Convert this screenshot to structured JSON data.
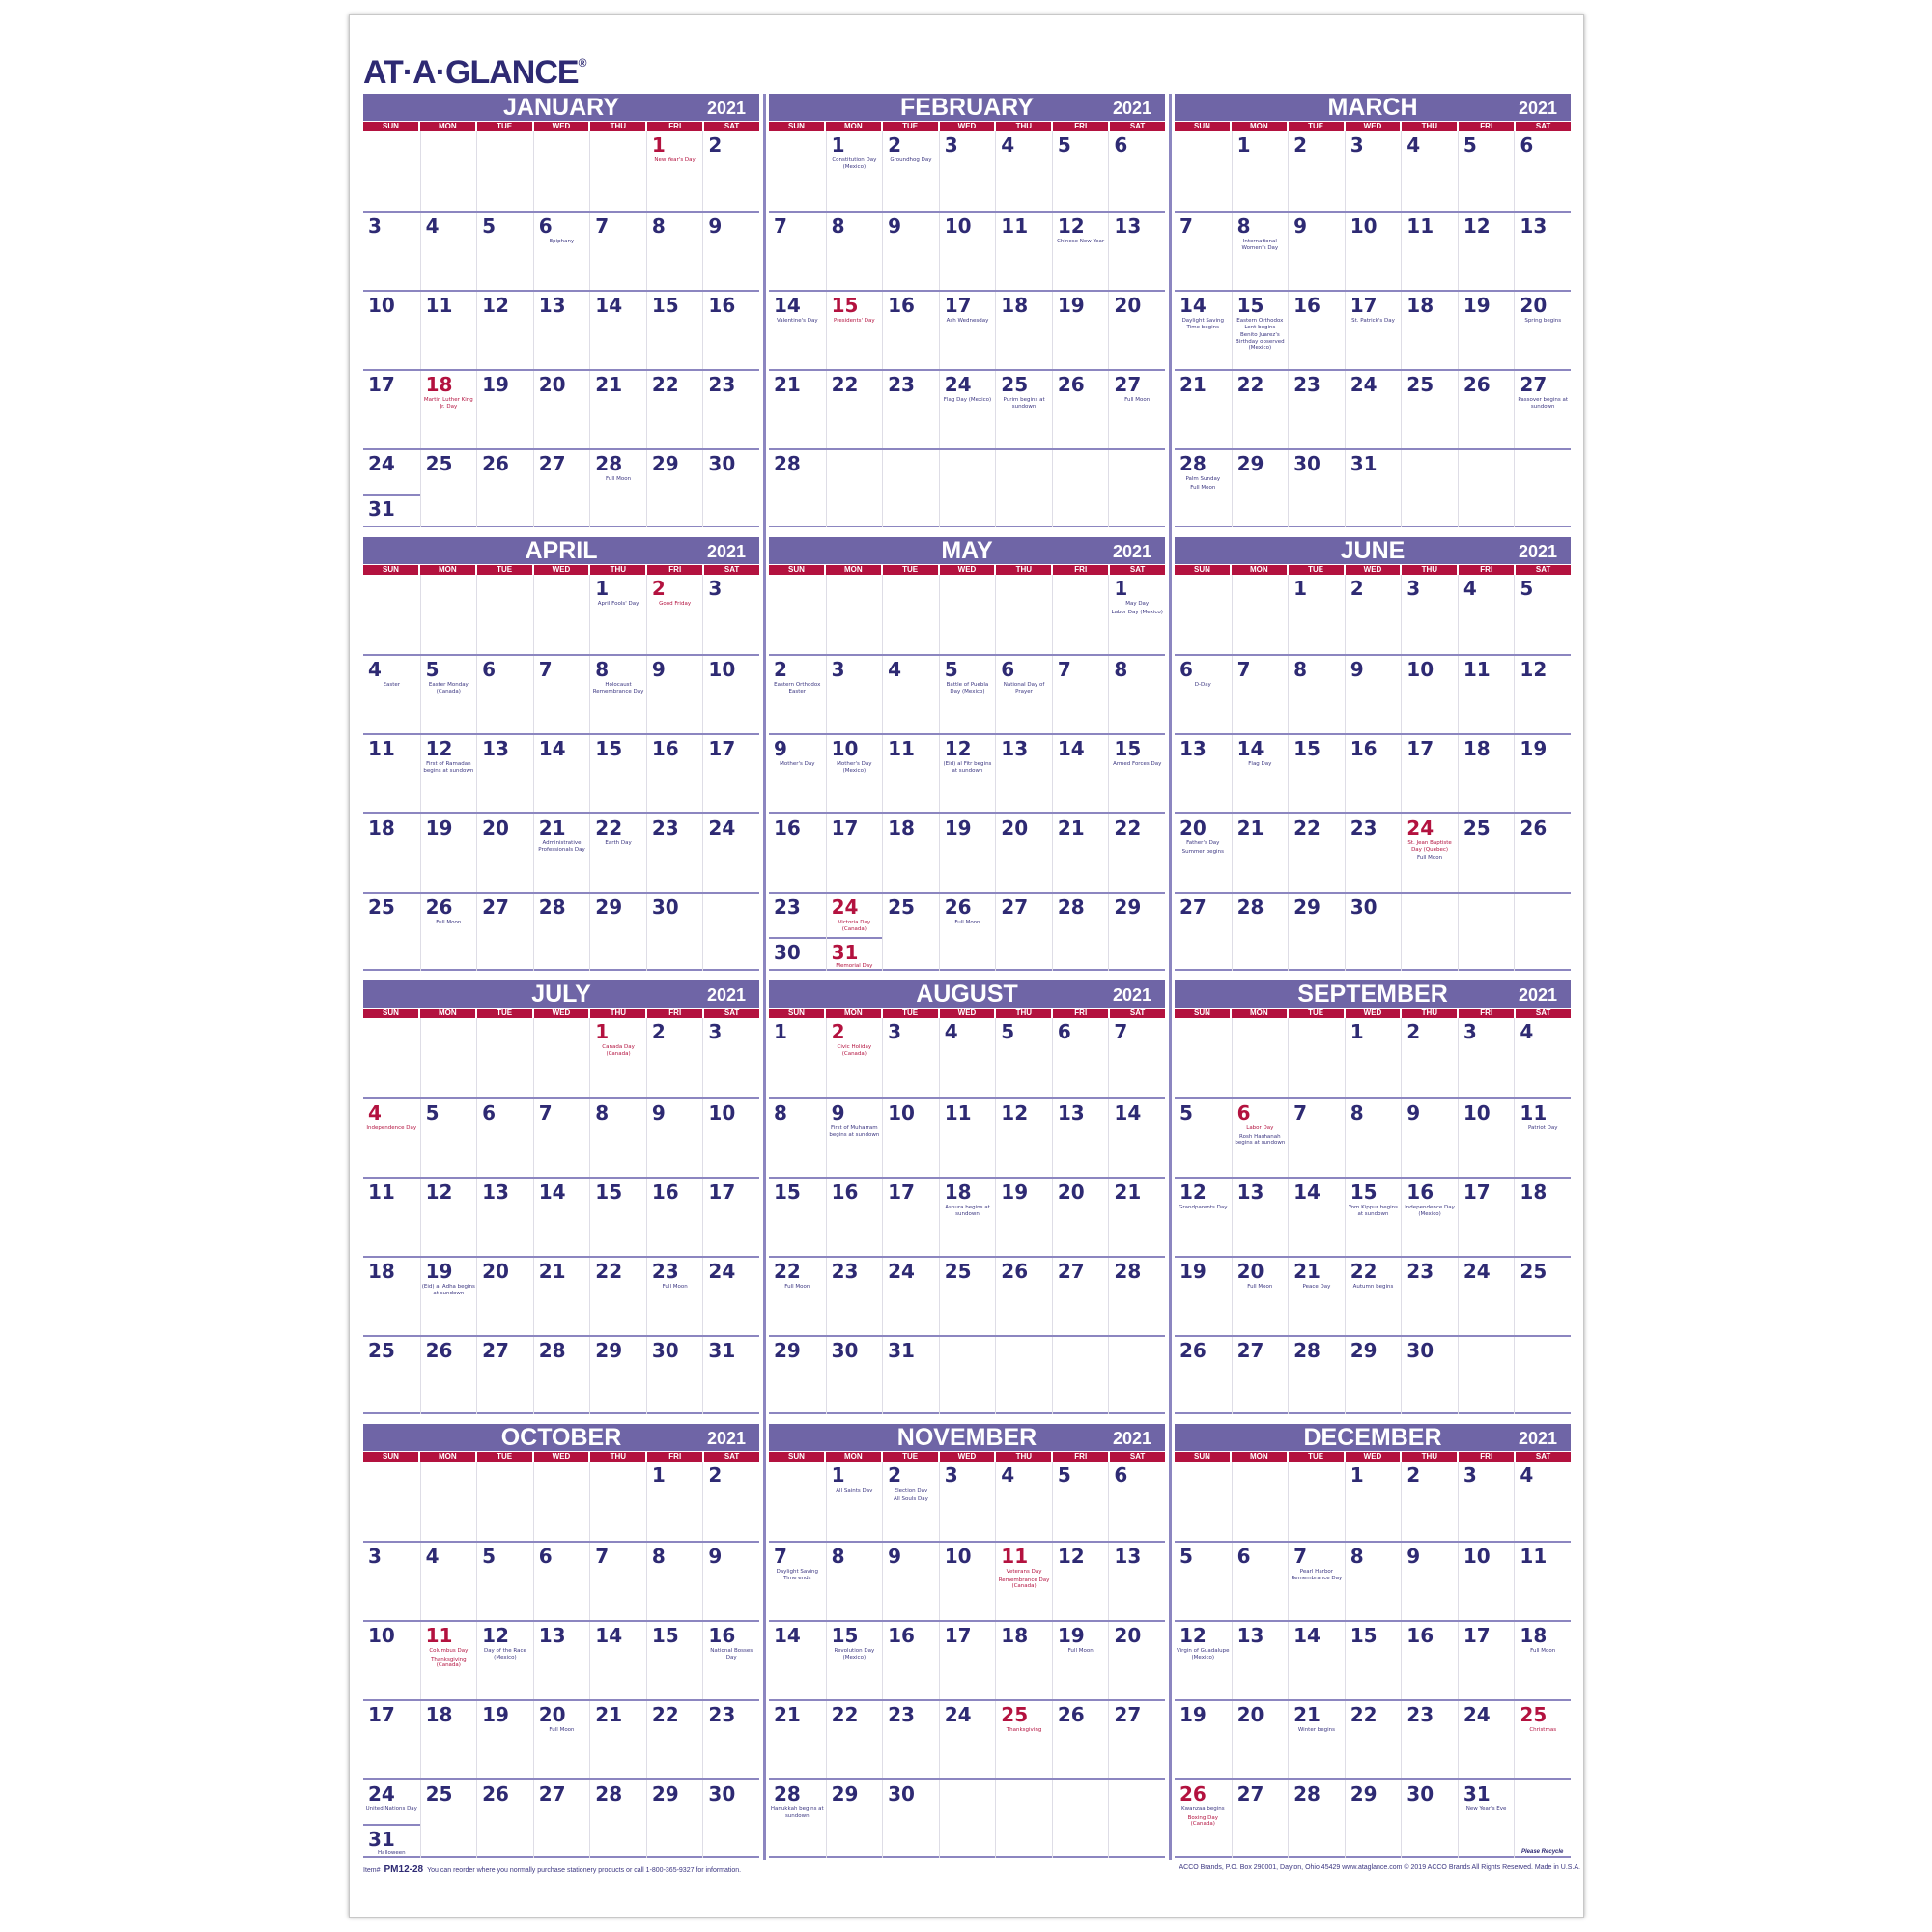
{
  "brand": {
    "logo": "AT·A·GLANCE",
    "registered": "®"
  },
  "colors": {
    "navy": "#2e2a73",
    "red": "#b3123f",
    "header_purple": "#6f65a6",
    "rule_purple": "#8c86c0"
  },
  "weekdays": [
    "SUN",
    "MON",
    "TUE",
    "WED",
    "THU",
    "FRI",
    "SAT"
  ],
  "months": [
    {
      "name": "JANUARY",
      "year": "2021",
      "weeks": [
        [
          null,
          null,
          null,
          null,
          null,
          1,
          2
        ],
        [
          3,
          4,
          5,
          6,
          7,
          8,
          9
        ],
        [
          10,
          11,
          12,
          13,
          14,
          15,
          16
        ],
        [
          17,
          18,
          19,
          20,
          21,
          22,
          23
        ],
        [
          24,
          25,
          26,
          27,
          28,
          29,
          30
        ],
        [
          31
        ]
      ],
      "red": [
        1,
        18
      ],
      "events": {
        "1": [
          {
            "t": "New Year's Day",
            "red": true
          }
        ],
        "6": [
          {
            "t": "Epiphany"
          }
        ],
        "18": [
          {
            "t": "Martin Luther King Jr. Day",
            "red": true
          }
        ],
        "28": [
          {
            "t": "Full Moon"
          }
        ]
      }
    },
    {
      "name": "FEBRUARY",
      "year": "2021",
      "weeks": [
        [
          null,
          1,
          2,
          3,
          4,
          5,
          6
        ],
        [
          7,
          8,
          9,
          10,
          11,
          12,
          13
        ],
        [
          14,
          15,
          16,
          17,
          18,
          19,
          20
        ],
        [
          21,
          22,
          23,
          24,
          25,
          26,
          27
        ],
        [
          28
        ]
      ],
      "red": [
        15
      ],
      "events": {
        "1": [
          {
            "t": "Constitution Day (Mexico)"
          }
        ],
        "2": [
          {
            "t": "Groundhog Day"
          }
        ],
        "12": [
          {
            "t": "Chinese New Year"
          }
        ],
        "14": [
          {
            "t": "Valentine's Day"
          }
        ],
        "15": [
          {
            "t": "Presidents' Day",
            "red": true
          }
        ],
        "17": [
          {
            "t": "Ash Wednesday"
          }
        ],
        "24": [
          {
            "t": "Flag Day (Mexico)"
          }
        ],
        "25": [
          {
            "t": "Purim begins at sundown"
          }
        ],
        "27": [
          {
            "t": "Full Moon"
          }
        ]
      }
    },
    {
      "name": "MARCH",
      "year": "2021",
      "weeks": [
        [
          null,
          1,
          2,
          3,
          4,
          5,
          6
        ],
        [
          7,
          8,
          9,
          10,
          11,
          12,
          13
        ],
        [
          14,
          15,
          16,
          17,
          18,
          19,
          20
        ],
        [
          21,
          22,
          23,
          24,
          25,
          26,
          27
        ],
        [
          28,
          29,
          30,
          31
        ]
      ],
      "red": [],
      "events": {
        "8": [
          {
            "t": "International Women's Day"
          }
        ],
        "14": [
          {
            "t": "Daylight Saving Time begins"
          }
        ],
        "15": [
          {
            "t": "Eastern Orthodox Lent begins"
          },
          {
            "t": "Benito Juarez's Birthday observed (Mexico)"
          }
        ],
        "17": [
          {
            "t": "St. Patrick's Day"
          }
        ],
        "20": [
          {
            "t": "Spring begins"
          }
        ],
        "27": [
          {
            "t": "Passover begins at sundown"
          }
        ],
        "28": [
          {
            "t": "Palm Sunday"
          },
          {
            "t": "Full Moon"
          }
        ]
      }
    },
    {
      "name": "APRIL",
      "year": "2021",
      "weeks": [
        [
          null,
          null,
          null,
          null,
          1,
          2,
          3
        ],
        [
          4,
          5,
          6,
          7,
          8,
          9,
          10
        ],
        [
          11,
          12,
          13,
          14,
          15,
          16,
          17
        ],
        [
          18,
          19,
          20,
          21,
          22,
          23,
          24
        ],
        [
          25,
          26,
          27,
          28,
          29,
          30
        ]
      ],
      "red": [
        2
      ],
      "events": {
        "1": [
          {
            "t": "April Fools' Day"
          }
        ],
        "2": [
          {
            "t": "Good Friday",
            "red": true
          }
        ],
        "4": [
          {
            "t": "Easter"
          }
        ],
        "5": [
          {
            "t": "Easter Monday (Canada)"
          }
        ],
        "8": [
          {
            "t": "Holocaust Remembrance Day"
          }
        ],
        "12": [
          {
            "t": "First of Ramadan begins at sundown"
          }
        ],
        "21": [
          {
            "t": "Administrative Professionals Day"
          }
        ],
        "22": [
          {
            "t": "Earth Day"
          }
        ],
        "26": [
          {
            "t": "Full Moon"
          }
        ]
      }
    },
    {
      "name": "MAY",
      "year": "2021",
      "weeks": [
        [
          null,
          null,
          null,
          null,
          null,
          null,
          1
        ],
        [
          2,
          3,
          4,
          5,
          6,
          7,
          8
        ],
        [
          9,
          10,
          11,
          12,
          13,
          14,
          15
        ],
        [
          16,
          17,
          18,
          19,
          20,
          21,
          22
        ],
        [
          23,
          24,
          25,
          26,
          27,
          28,
          29
        ],
        [
          30,
          31
        ]
      ],
      "red": [
        24,
        31
      ],
      "events": {
        "1": [
          {
            "t": "May Day"
          },
          {
            "t": "Labor Day (Mexico)"
          }
        ],
        "2": [
          {
            "t": "Eastern Orthodox Easter"
          }
        ],
        "5": [
          {
            "t": "Battle of Puebla Day (Mexico)"
          }
        ],
        "6": [
          {
            "t": "National Day of Prayer"
          }
        ],
        "9": [
          {
            "t": "Mother's Day"
          }
        ],
        "10": [
          {
            "t": "Mother's Day (Mexico)"
          }
        ],
        "12": [
          {
            "t": "(Eid) al Fitr begins at sundown"
          }
        ],
        "15": [
          {
            "t": "Armed Forces Day"
          }
        ],
        "24": [
          {
            "t": "Victoria Day (Canada)",
            "red": true
          }
        ],
        "26": [
          {
            "t": "Full Moon"
          }
        ],
        "31": [
          {
            "t": "Memorial Day",
            "red": true
          }
        ]
      }
    },
    {
      "name": "JUNE",
      "year": "2021",
      "weeks": [
        [
          null,
          null,
          1,
          2,
          3,
          4,
          5
        ],
        [
          6,
          7,
          8,
          9,
          10,
          11,
          12
        ],
        [
          13,
          14,
          15,
          16,
          17,
          18,
          19
        ],
        [
          20,
          21,
          22,
          23,
          24,
          25,
          26
        ],
        [
          27,
          28,
          29,
          30
        ]
      ],
      "red": [
        24
      ],
      "events": {
        "6": [
          {
            "t": "D-Day"
          }
        ],
        "14": [
          {
            "t": "Flag Day"
          }
        ],
        "20": [
          {
            "t": "Father's Day"
          },
          {
            "t": "Summer begins"
          }
        ],
        "24": [
          {
            "t": "St. Jean Baptiste Day (Quebec)",
            "red": true
          },
          {
            "t": "Full Moon"
          }
        ]
      }
    },
    {
      "name": "JULY",
      "year": "2021",
      "weeks": [
        [
          null,
          null,
          null,
          null,
          1,
          2,
          3
        ],
        [
          4,
          5,
          6,
          7,
          8,
          9,
          10
        ],
        [
          11,
          12,
          13,
          14,
          15,
          16,
          17
        ],
        [
          18,
          19,
          20,
          21,
          22,
          23,
          24
        ],
        [
          25,
          26,
          27,
          28,
          29,
          30,
          31
        ]
      ],
      "red": [
        1,
        4
      ],
      "events": {
        "1": [
          {
            "t": "Canada Day (Canada)",
            "red": true
          }
        ],
        "4": [
          {
            "t": "Independence Day",
            "red": true
          }
        ],
        "19": [
          {
            "t": "(Eid) al Adha begins at sundown"
          }
        ],
        "23": [
          {
            "t": "Full Moon"
          }
        ]
      }
    },
    {
      "name": "AUGUST",
      "year": "2021",
      "weeks": [
        [
          1,
          2,
          3,
          4,
          5,
          6,
          7
        ],
        [
          8,
          9,
          10,
          11,
          12,
          13,
          14
        ],
        [
          15,
          16,
          17,
          18,
          19,
          20,
          21
        ],
        [
          22,
          23,
          24,
          25,
          26,
          27,
          28
        ],
        [
          29,
          30,
          31
        ]
      ],
      "red": [
        2
      ],
      "events": {
        "2": [
          {
            "t": "Civic Holiday (Canada)",
            "red": true
          }
        ],
        "9": [
          {
            "t": "First of Muharram begins at sundown"
          }
        ],
        "18": [
          {
            "t": "Ashura begins at sundown"
          }
        ],
        "22": [
          {
            "t": "Full Moon"
          }
        ]
      }
    },
    {
      "name": "SEPTEMBER",
      "year": "2021",
      "weeks": [
        [
          null,
          null,
          null,
          1,
          2,
          3,
          4
        ],
        [
          5,
          6,
          7,
          8,
          9,
          10,
          11
        ],
        [
          12,
          13,
          14,
          15,
          16,
          17,
          18
        ],
        [
          19,
          20,
          21,
          22,
          23,
          24,
          25
        ],
        [
          26,
          27,
          28,
          29,
          30
        ]
      ],
      "red": [
        6
      ],
      "events": {
        "6": [
          {
            "t": "Labor Day",
            "red": true
          },
          {
            "t": "Rosh Hashanah begins at sundown"
          }
        ],
        "11": [
          {
            "t": "Patriot Day"
          }
        ],
        "12": [
          {
            "t": "Grandparents Day"
          }
        ],
        "15": [
          {
            "t": "Yom Kippur begins at sundown"
          }
        ],
        "16": [
          {
            "t": "Independence Day (Mexico)"
          }
        ],
        "20": [
          {
            "t": "Full Moon"
          }
        ],
        "21": [
          {
            "t": "Peace Day"
          }
        ],
        "22": [
          {
            "t": "Autumn begins"
          }
        ]
      }
    },
    {
      "name": "OCTOBER",
      "year": "2021",
      "weeks": [
        [
          null,
          null,
          null,
          null,
          null,
          1,
          2
        ],
        [
          3,
          4,
          5,
          6,
          7,
          8,
          9
        ],
        [
          10,
          11,
          12,
          13,
          14,
          15,
          16
        ],
        [
          17,
          18,
          19,
          20,
          21,
          22,
          23
        ],
        [
          24,
          25,
          26,
          27,
          28,
          29,
          30
        ],
        [
          31
        ]
      ],
      "red": [
        11
      ],
      "events": {
        "11": [
          {
            "t": "Columbus Day",
            "red": true
          },
          {
            "t": "Thanksgiving (Canada)",
            "red": true
          }
        ],
        "12": [
          {
            "t": "Day of the Race (Mexico)"
          }
        ],
        "16": [
          {
            "t": "National Bosses Day"
          }
        ],
        "20": [
          {
            "t": "Full Moon"
          }
        ],
        "24": [
          {
            "t": "United Nations Day"
          }
        ],
        "31": [
          {
            "t": "Halloween"
          }
        ]
      }
    },
    {
      "name": "NOVEMBER",
      "year": "2021",
      "weeks": [
        [
          null,
          1,
          2,
          3,
          4,
          5,
          6
        ],
        [
          7,
          8,
          9,
          10,
          11,
          12,
          13
        ],
        [
          14,
          15,
          16,
          17,
          18,
          19,
          20
        ],
        [
          21,
          22,
          23,
          24,
          25,
          26,
          27
        ],
        [
          28,
          29,
          30
        ]
      ],
      "red": [
        11,
        25
      ],
      "events": {
        "1": [
          {
            "t": "All Saints Day"
          }
        ],
        "2": [
          {
            "t": "Election Day"
          },
          {
            "t": "All Souls Day"
          }
        ],
        "7": [
          {
            "t": "Daylight Saving Time ends"
          }
        ],
        "11": [
          {
            "t": "Veterans Day",
            "red": true
          },
          {
            "t": "Remembrance Day (Canada)",
            "red": true
          }
        ],
        "15": [
          {
            "t": "Revolution Day (Mexico)"
          }
        ],
        "19": [
          {
            "t": "Full Moon"
          }
        ],
        "25": [
          {
            "t": "Thanksgiving",
            "red": true
          }
        ],
        "28": [
          {
            "t": "Hanukkah begins at sundown"
          }
        ]
      }
    },
    {
      "name": "DECEMBER",
      "year": "2021",
      "weeks": [
        [
          null,
          null,
          null,
          1,
          2,
          3,
          4
        ],
        [
          5,
          6,
          7,
          8,
          9,
          10,
          11
        ],
        [
          12,
          13,
          14,
          15,
          16,
          17,
          18
        ],
        [
          19,
          20,
          21,
          22,
          23,
          24,
          25
        ],
        [
          26,
          27,
          28,
          29,
          30,
          31
        ]
      ],
      "red": [
        25,
        26
      ],
      "events": {
        "7": [
          {
            "t": "Pearl Harbor Remembrance Day"
          }
        ],
        "12": [
          {
            "t": "Virgin of Guadalupe (Mexico)"
          }
        ],
        "18": [
          {
            "t": "Full Moon"
          }
        ],
        "21": [
          {
            "t": "Winter begins"
          }
        ],
        "25": [
          {
            "t": "Christmas",
            "red": true
          }
        ],
        "26": [
          {
            "t": "Kwanzaa begins"
          },
          {
            "t": "Boxing Day (Canada)",
            "red": true
          }
        ],
        "31": [
          {
            "t": "New Year's Eve"
          }
        ]
      }
    }
  ],
  "footer": {
    "item_label": "Item#",
    "item_code": "PM12-28",
    "reorder_text": "You can reorder where you normally purchase stationery products or call 1-800-365-9327 for information.",
    "company": "ACCO Brands, P.O. Box 290001, Dayton, Ohio 45429   www.ataglance.com   © 2019 ACCO Brands   All Rights Reserved.  Made in U.S.A.",
    "recycle": "Please Recycle"
  }
}
